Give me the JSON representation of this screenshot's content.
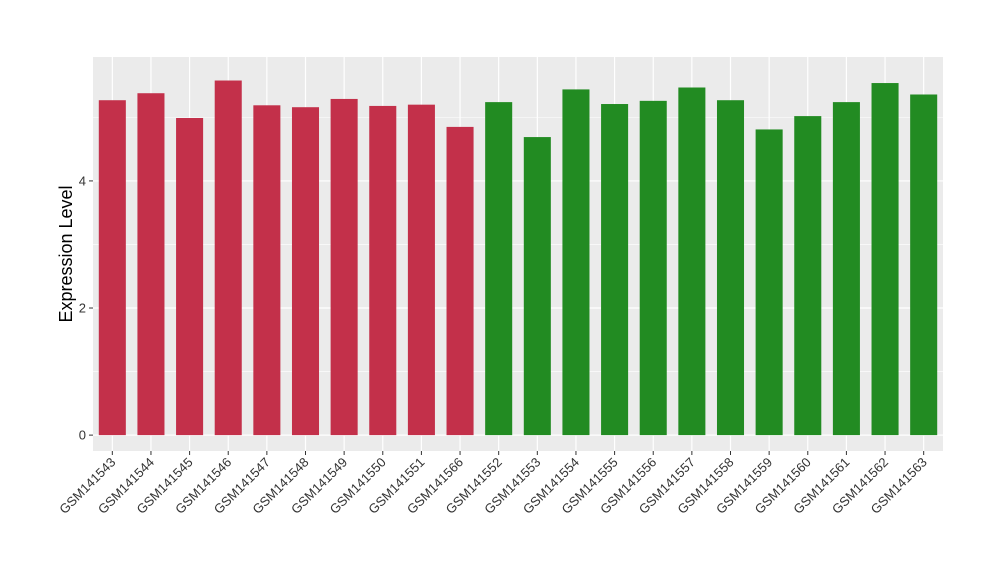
{
  "chart_data": {
    "type": "bar",
    "title": "",
    "xlabel": "",
    "ylabel": "Expression Level",
    "ylim": [
      -0.25,
      5.95
    ],
    "yticks": [
      0,
      2,
      4
    ],
    "grid": true,
    "legend": "none",
    "categories": [
      "GSM141543",
      "GSM141544",
      "GSM141545",
      "GSM141546",
      "GSM141547",
      "GSM141548",
      "GSM141549",
      "GSM141550",
      "GSM141551",
      "GSM141566",
      "GSM141552",
      "GSM141553",
      "GSM141554",
      "GSM141555",
      "GSM141556",
      "GSM141557",
      "GSM141558",
      "GSM141559",
      "GSM141560",
      "GSM141561",
      "GSM141562",
      "GSM141563"
    ],
    "values": [
      5.27,
      5.38,
      4.99,
      5.58,
      5.19,
      5.16,
      5.29,
      5.18,
      5.2,
      4.85,
      5.24,
      4.69,
      5.44,
      5.21,
      5.26,
      5.47,
      5.27,
      4.81,
      5.02,
      5.24,
      5.54,
      5.36
    ],
    "bar_colors": [
      "#C3304A",
      "#C3304A",
      "#C3304A",
      "#C3304A",
      "#C3304A",
      "#C3304A",
      "#C3304A",
      "#C3304A",
      "#C3304A",
      "#C3304A",
      "#228B22",
      "#228B22",
      "#228B22",
      "#228B22",
      "#228B22",
      "#228B22",
      "#228B22",
      "#228B22",
      "#228B22",
      "#228B22",
      "#228B22",
      "#228B22"
    ],
    "panel_background": "#EBEBEB",
    "grid_color": "#FFFFFF"
  }
}
